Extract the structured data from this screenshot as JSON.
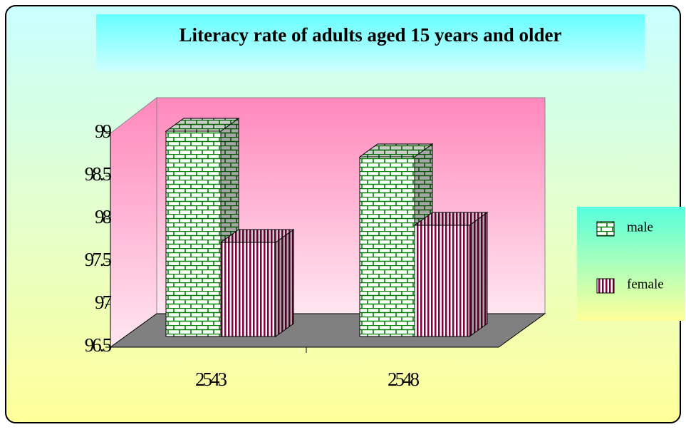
{
  "chart_data": {
    "type": "bar3d",
    "title": "Literacy rate of adults aged 15 years and older",
    "categories": [
      "2543",
      "2548"
    ],
    "series": [
      {
        "name": "male",
        "color": "#008000",
        "values": [
          98.9,
          98.6
        ]
      },
      {
        "name": "female",
        "color": "#800040",
        "values": [
          97.6,
          97.8
        ]
      }
    ],
    "ylim": [
      96.5,
      99
    ],
    "yticks": [
      96.5,
      97,
      97.5,
      98,
      98.5,
      99
    ]
  }
}
